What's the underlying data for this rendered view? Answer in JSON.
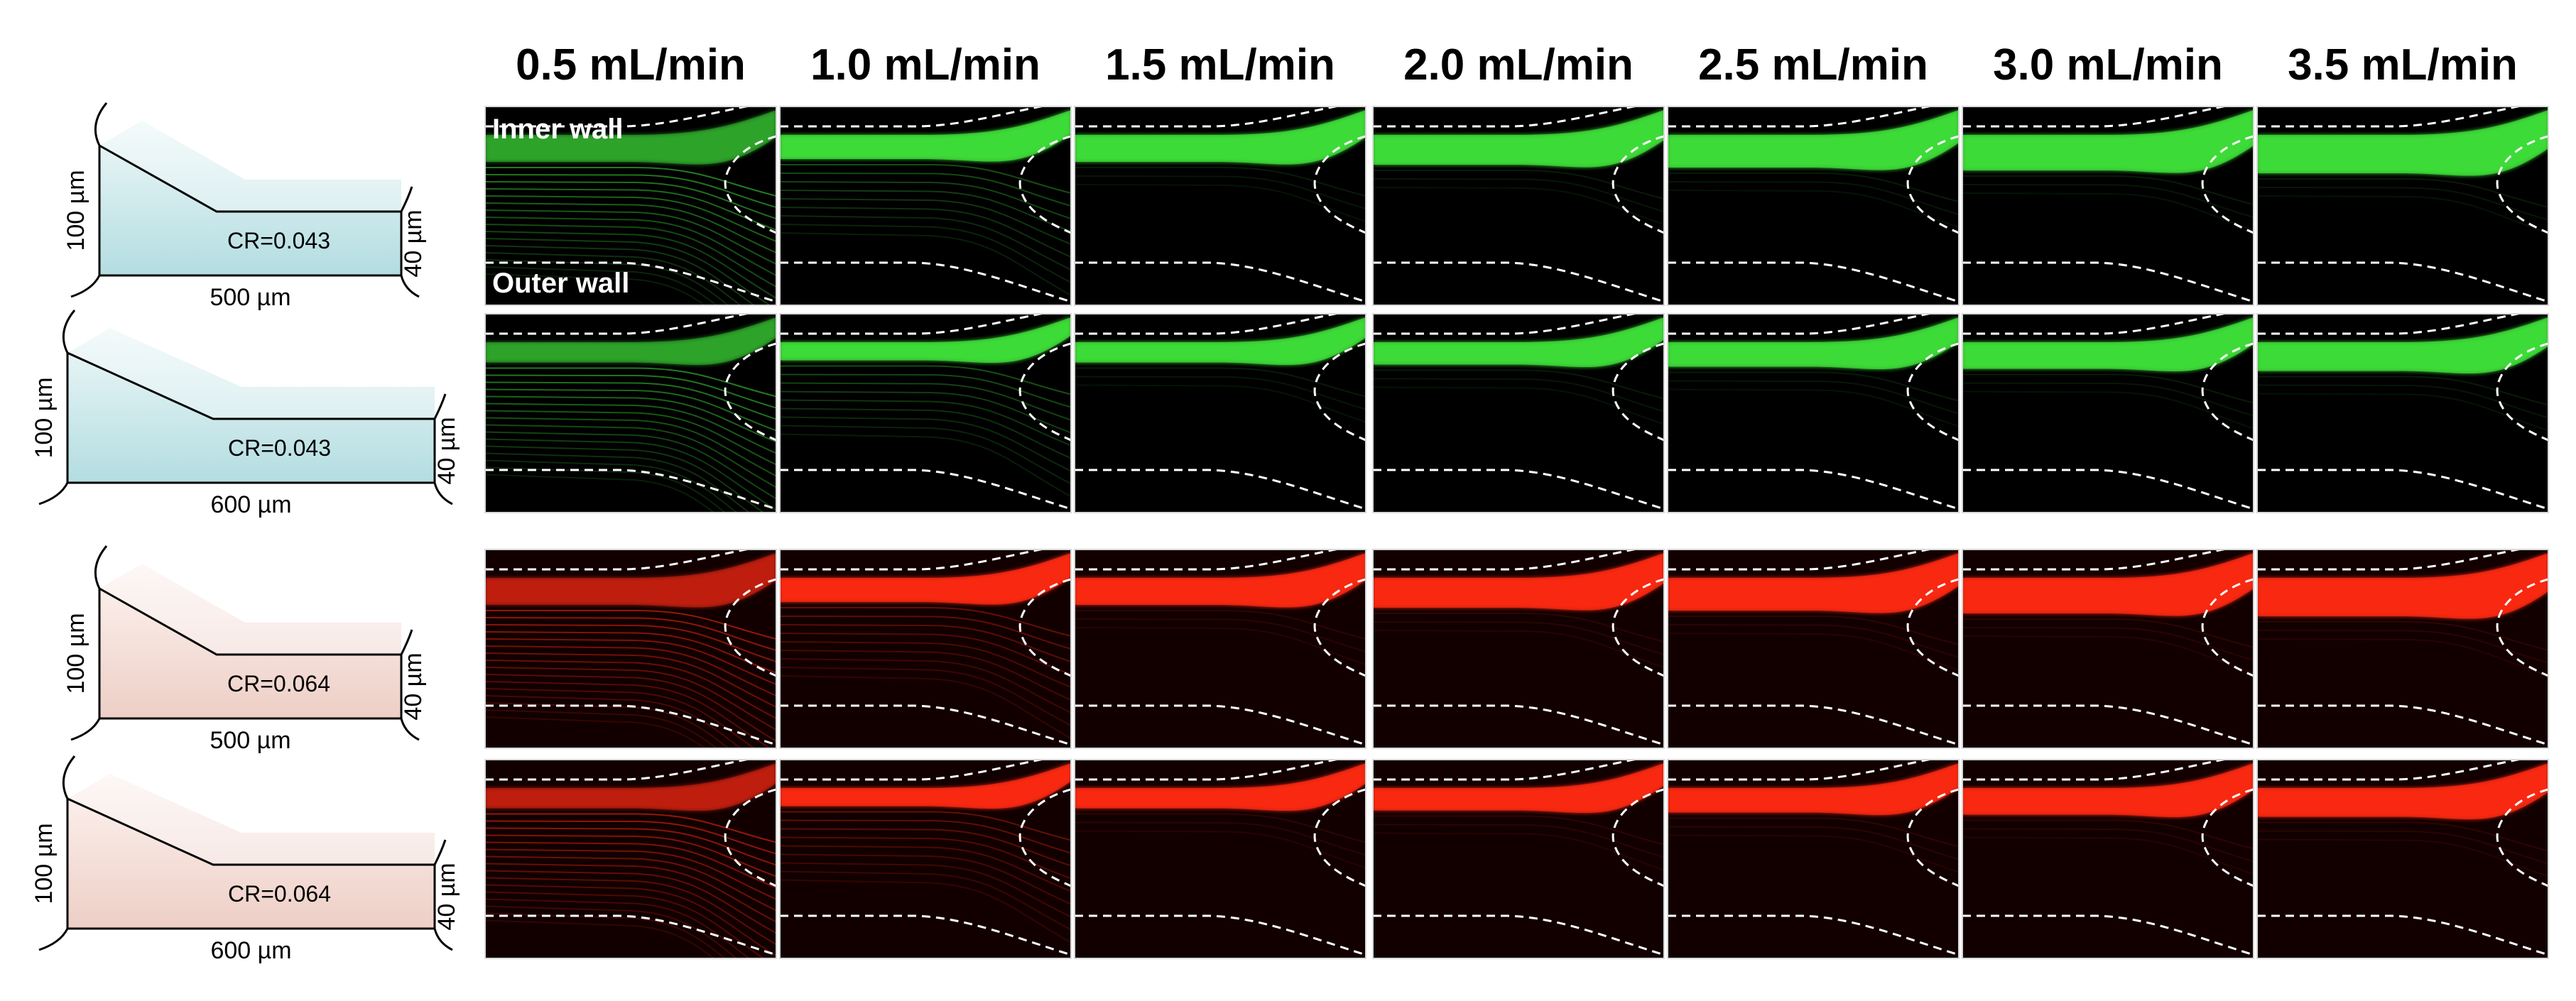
{
  "flow_rates": [
    "0.5 mL/min",
    "1.0 mL/min",
    "1.5 mL/min",
    "2.0 mL/min",
    "2.5 mL/min",
    "3.0 mL/min",
    "3.5 mL/min"
  ],
  "wall_labels": {
    "inner": "Inner wall",
    "outer": "Outer wall"
  },
  "rows": [
    {
      "color": "green",
      "cross_section": {
        "height_left": "100 µm",
        "height_right": "40 µm",
        "width": "500 µm",
        "cr": "CR=0.043"
      }
    },
    {
      "color": "green",
      "cross_section": {
        "height_left": "100 µm",
        "height_right": "40 µm",
        "width": "600 µm",
        "cr": "CR=0.043"
      }
    },
    {
      "color": "red",
      "cross_section": {
        "height_left": "100 µm",
        "height_right": "40 µm",
        "width": "500 µm",
        "cr": "CR=0.064"
      }
    },
    {
      "color": "red",
      "cross_section": {
        "height_left": "100 µm",
        "height_right": "40 µm",
        "width": "600 µm",
        "cr": "CR=0.064"
      }
    }
  ],
  "colors": {
    "green": "#3fe03a",
    "red": "#ff2a12",
    "teal_fill": "#bfe3e6",
    "pink_fill": "#f4d8d0"
  }
}
